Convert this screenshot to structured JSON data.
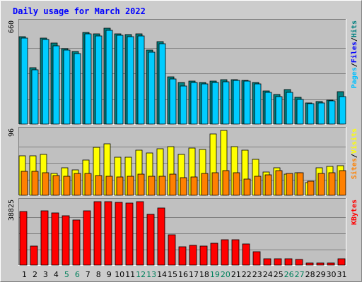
{
  "chart_data": {
    "type": "bar",
    "title": "Daily usage for March 2022",
    "colors": {
      "background": "#cccccc",
      "panel": "#c0c0c0",
      "title": "#0000ff",
      "grid": "#808080",
      "hits": "#008080",
      "files": "#00ccff",
      "pages": "#00c0ff",
      "visits": "#ffff00",
      "sites": "#ff8000",
      "kbytes": "#ff0000",
      "weekend": "#00805c",
      "weekday": "#000000"
    },
    "days": [
      "1",
      "2",
      "3",
      "4",
      "5",
      "6",
      "7",
      "8",
      "9",
      "10",
      "11",
      "12",
      "13",
      "14",
      "15",
      "16",
      "17",
      "18",
      "19",
      "20",
      "21",
      "22",
      "23",
      "24",
      "25",
      "26",
      "27",
      "28",
      "29",
      "30",
      "31"
    ],
    "weekend_days": [
      "5",
      "6",
      "12",
      "13",
      "19",
      "20",
      "26",
      "27"
    ],
    "panels": [
      {
        "id": "hits_files",
        "ymax": 660,
        "ymax_label": "660",
        "legend": [
          {
            "text": "Pages",
            "color": "#00c0ff"
          },
          {
            "text": "/",
            "color": "#000000"
          },
          {
            "text": "Files",
            "color": "#0000ff"
          },
          {
            "text": "/",
            "color": "#000000"
          },
          {
            "text": "Hits",
            "color": "#008080"
          }
        ],
        "series": [
          {
            "name": "Hits",
            "color": "#008080",
            "values": [
              563,
              368,
              557,
              525,
              487,
              469,
              590,
              581,
              619,
              583,
              580,
              582,
              477,
              532,
              306,
              273,
              282,
              272,
              279,
              289,
              291,
              287,
              270,
              218,
              195,
              224,
              176,
              142,
              149,
              156,
              211
            ]
          },
          {
            "name": "Files",
            "color": "#00ccff",
            "values": [
              558,
              353,
              546,
              505,
              477,
              456,
              583,
              569,
              608,
              576,
              566,
              571,
              467,
              521,
              293,
              249,
              273,
              262,
              272,
              275,
              284,
              281,
              261,
              208,
              180,
              210,
              164,
              134,
              142,
              155,
              180
            ]
          }
        ]
      },
      {
        "id": "visits_sites",
        "ymax": 96,
        "ymax_label": "96",
        "legend": [
          {
            "text": "Sites",
            "color": "#ff8000"
          },
          {
            "text": "/",
            "color": "#000000"
          },
          {
            "text": "Visits",
            "color": "#ffff00"
          }
        ],
        "series": [
          {
            "name": "Visits",
            "color": "#ffff00",
            "values": [
              58,
              58,
              60,
              33,
              41,
              38,
              52,
              70,
              76,
              56,
              56,
              66,
              62,
              68,
              71,
              60,
              69,
              67,
              90,
              95,
              71,
              66,
              53,
              35,
              41,
              32,
              34,
              19,
              41,
              43,
              44
            ]
          },
          {
            "name": "Sites",
            "color": "#ff8000",
            "values": [
              36,
              36,
              34,
              30,
              29,
              33,
              33,
              30,
              29,
              28,
              29,
              32,
              29,
              29,
              32,
              27,
              28,
              33,
              34,
              37,
              34,
              25,
              29,
              31,
              37,
              33,
              34,
              21,
              33,
              34,
              37
            ]
          }
        ]
      },
      {
        "id": "kbytes",
        "ymax": 38825,
        "ymax_label": "38825",
        "legend": [
          {
            "text": "KBytes",
            "color": "#ff0000"
          }
        ],
        "series": [
          {
            "name": "KBytes",
            "color": "#ff0000",
            "values": [
              32500,
              12000,
              32800,
              31600,
              30000,
              27500,
              32800,
              38600,
              38600,
              37800,
              37400,
              38400,
              30600,
              34800,
              18500,
              11600,
              12300,
              11800,
              13300,
              15800,
              15800,
              13200,
              8300,
              4400,
              4400,
              4400,
              4000,
              1500,
              1500,
              1600,
              4400
            ]
          }
        ]
      }
    ]
  }
}
